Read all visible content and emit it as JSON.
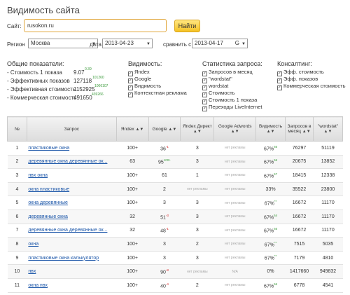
{
  "title": "Видимость сайта",
  "search": {
    "label": "Сайт:",
    "value": "rusokon.ru",
    "button": "Найти"
  },
  "filters": {
    "region_label": "Регион",
    "region_value": "Москва",
    "date_label": "дата",
    "date_value": "2013-04-23",
    "compare_label": "сравнить с",
    "compare_value": "2013-04-17",
    "compare_engine": "G"
  },
  "metrics": {
    "title": "Общие показатели:",
    "items": [
      {
        "label": "- Стоимость 1 показа",
        "value": "9.07",
        "change": "0.39"
      },
      {
        "label": "- Эффективных показов",
        "value": "127118",
        "change": "101260"
      },
      {
        "label": "- Эффективная стоимость",
        "value": "1152925",
        "change": "1006107"
      },
      {
        "label": "- Коммерческая стоимость",
        "value": "491650",
        "change": "439266"
      }
    ]
  },
  "visibility": {
    "title": "Видимость:",
    "options": [
      "Яndex",
      "Google",
      "Видимость",
      "Контекстная реклама"
    ]
  },
  "stats": {
    "title": "Статистика запроса:",
    "options": [
      "Запросов в месяц",
      "\"wordstat\"",
      "wordstat",
      "Стоимость",
      "Стоимость 1 показа",
      "Переходы LiveInternet"
    ]
  },
  "consulting": {
    "title": "Консалтинг:",
    "options": [
      "Эфф. стоимость",
      "Эфф. показов",
      "Коммерческая стоимость"
    ]
  },
  "table": {
    "headers": {
      "num": "№",
      "query": "Запрос",
      "yandex": "Яndex",
      "google": "Google",
      "direct": "Яndex Директ",
      "adwords": "Google Adwords",
      "visibility": "Видимость",
      "monthly": "Запросов в месяц",
      "wordstat": "\"wordstat\""
    },
    "no_ads": "нет рекламы",
    "rows": [
      {
        "n": "1",
        "q": "пластиковые окна",
        "y": "100+",
        "g": "36",
        "gd": "-1",
        "d": "3",
        "a": "нет рекламы",
        "v": "67%",
        "vd": "66",
        "m": "76297",
        "w": "51119"
      },
      {
        "n": "2",
        "q": "деревянные окна деревянные ок...",
        "y": "63",
        "g": "95",
        "gd": "100+",
        "d": "3",
        "a": "нет рекламы",
        "v": "67%",
        "vd": "66",
        "m": "20675",
        "w": "13852"
      },
      {
        "n": "3",
        "q": "пвх окна",
        "y": "100+",
        "g": "61",
        "gd": "",
        "d": "1",
        "a": "нет рекламы",
        "v": "67%",
        "vd": "67",
        "m": "18415",
        "w": "12338"
      },
      {
        "n": "4",
        "q": "окна пластиковые",
        "y": "100+",
        "g": "2",
        "gd": "",
        "d": "нет рекламы",
        "a": "нет рекламы",
        "v": "33%",
        "vd": "",
        "m": "35522",
        "w": "23800"
      },
      {
        "n": "5",
        "q": "окна деревянные",
        "y": "100+",
        "g": "3",
        "gd": "",
        "d": "3",
        "a": "нет рекламы",
        "v": "67%",
        "vd": "**",
        "m": "16672",
        "w": "11170"
      },
      {
        "n": "6",
        "q": "деревянные окна",
        "y": "32",
        "g": "51",
        "gd": "-3",
        "d": "3",
        "a": "нет рекламы",
        "v": "67%",
        "vd": "64",
        "m": "16672",
        "w": "11170"
      },
      {
        "n": "7",
        "q": "деревянные окна деревянные ок...",
        "y": "32",
        "g": "48",
        "gd": "-1",
        "d": "3",
        "a": "нет рекламы",
        "v": "67%",
        "vd": "66",
        "m": "16672",
        "w": "11170"
      },
      {
        "n": "8",
        "q": "окна",
        "y": "100+",
        "g": "3",
        "gd": "",
        "d": "2",
        "a": "нет рекламы",
        "v": "67%",
        "vd": "**",
        "m": "7515",
        "w": "5035"
      },
      {
        "n": "9",
        "q": "пластиковые окна калькулятор",
        "y": "100+",
        "g": "3",
        "gd": "",
        "d": "3",
        "a": "нет рекламы",
        "v": "67%",
        "vd": "**",
        "m": "7179",
        "w": "4810"
      },
      {
        "n": "10",
        "q": "пвх",
        "y": "100+",
        "g": "90",
        "gd": "-8",
        "d": "нет рекламы",
        "a": "N/A",
        "v": "0%",
        "vd": "",
        "m": "1417660",
        "w": "949832"
      },
      {
        "n": "11",
        "q": "окна пвх",
        "y": "100+",
        "g": "40",
        "gd": "-4",
        "d": "2",
        "a": "нет рекламы",
        "v": "67%",
        "vd": "66",
        "m": "6778",
        "w": "4541"
      }
    ]
  }
}
